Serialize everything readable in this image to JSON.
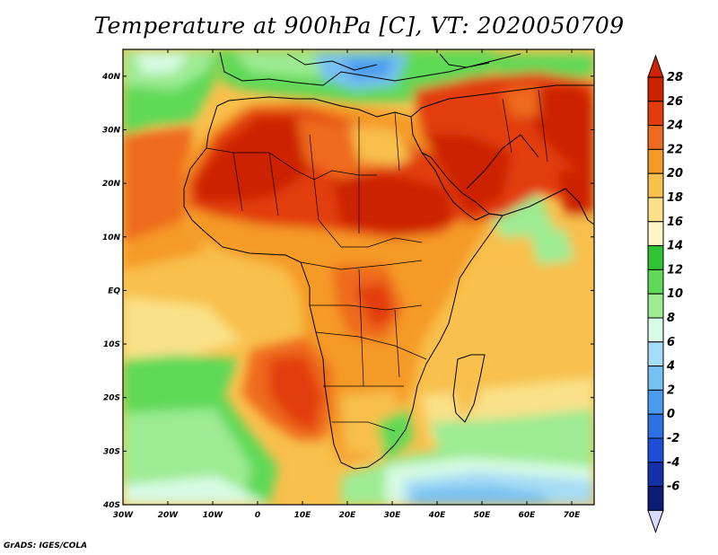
{
  "title": "Temperature at 900hPa [C], VT: 2020050709",
  "footer": "GrADS: IGES/COLA",
  "map": {
    "lon_labels": [
      "30W",
      "20W",
      "10W",
      "0",
      "10E",
      "20E",
      "30E",
      "40E",
      "50E",
      "60E",
      "70E"
    ],
    "lat_labels": [
      "40N",
      "30N",
      "20N",
      "10N",
      "EQ",
      "10S",
      "20S",
      "30S",
      "40S"
    ],
    "lon_range": [
      -30,
      75
    ],
    "lat_range": [
      -40,
      45
    ]
  },
  "colorbar": {
    "labels": [
      "28",
      "26",
      "24",
      "22",
      "20",
      "18",
      "16",
      "14",
      "12",
      "10",
      "8",
      "6",
      "4",
      "2",
      "0",
      "-2",
      "-4",
      "-6"
    ],
    "colors": [
      "#cc2200",
      "#e23c0e",
      "#ee6a1e",
      "#f59a28",
      "#f8c04c",
      "#fae189",
      "#fbf5c6",
      "#2ec434",
      "#5fd957",
      "#9deb93",
      "#d7fbe4",
      "#a6dcf5",
      "#77c1f2",
      "#4b9bf0",
      "#2e71e5",
      "#1d4fd6",
      "#1431aa",
      "#0c1c76"
    ],
    "max_color": "#cc2200",
    "min_color": "#d7dcff"
  }
}
